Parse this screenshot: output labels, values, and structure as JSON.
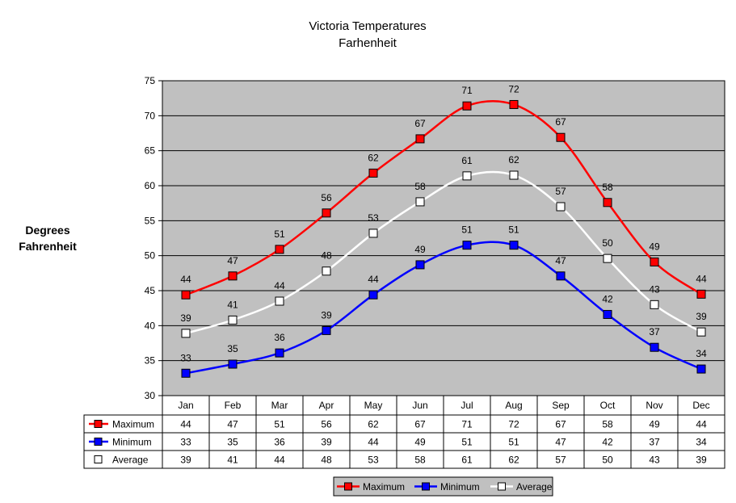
{
  "chart_data": {
    "type": "line",
    "title": "Victoria Temperatures",
    "subtitle": "Farhenheit",
    "ylabel_line1": "Degrees",
    "ylabel_line2": "Fahrenheit",
    "xlabel": "",
    "ylim": [
      30,
      75
    ],
    "ytick_step": 5,
    "yticks": [
      "30",
      "35",
      "40",
      "45",
      "50",
      "55",
      "60",
      "65",
      "70",
      "75"
    ],
    "grid": true,
    "plot_background": "#c0c0c0",
    "categories": [
      "Jan",
      "Feb",
      "Mar",
      "Apr",
      "May",
      "Jun",
      "Jul",
      "Aug",
      "Sep",
      "Oct",
      "Nov",
      "Dec"
    ],
    "series": [
      {
        "name": "Maximum",
        "color": "#ff0000",
        "marker_fill": "#ff0000",
        "values": [
          44.4,
          47.1,
          50.9,
          56.1,
          61.8,
          66.7,
          71.4,
          71.6,
          66.9,
          57.6,
          49.1,
          44.5
        ],
        "labels": [
          "44",
          "47",
          "51",
          "56",
          "62",
          "67",
          "71",
          "72",
          "67",
          "58",
          "49",
          "44"
        ]
      },
      {
        "name": "Minimum",
        "color": "#0000ff",
        "marker_fill": "#0000ff",
        "values": [
          33.2,
          34.5,
          36.1,
          39.3,
          44.4,
          48.7,
          51.5,
          51.5,
          47.1,
          41.6,
          36.9,
          33.8
        ],
        "labels": [
          "33",
          "35",
          "36",
          "39",
          "44",
          "49",
          "51",
          "51",
          "47",
          "42",
          "37",
          "34"
        ]
      },
      {
        "name": "Average",
        "color": "#ffffff",
        "marker_fill": "#ffffff",
        "values": [
          38.9,
          40.8,
          43.5,
          47.8,
          53.2,
          57.7,
          61.4,
          61.5,
          57.0,
          49.6,
          43.0,
          39.1
        ],
        "labels": [
          "39",
          "41",
          "44",
          "48",
          "53",
          "58",
          "61",
          "62",
          "57",
          "50",
          "43",
          "39"
        ]
      }
    ],
    "table": {
      "rows": [
        {
          "name": "Maximum",
          "cells": [
            "44",
            "47",
            "51",
            "56",
            "62",
            "67",
            "71",
            "72",
            "67",
            "58",
            "49",
            "44"
          ]
        },
        {
          "name": "Minimum",
          "cells": [
            "33",
            "35",
            "36",
            "39",
            "44",
            "49",
            "51",
            "51",
            "47",
            "42",
            "37",
            "34"
          ]
        },
        {
          "name": "Average",
          "cells": [
            "39",
            "41",
            "44",
            "48",
            "53",
            "58",
            "61",
            "62",
            "57",
            "50",
            "43",
            "39"
          ]
        }
      ]
    },
    "legend": {
      "placement": "bottom-center",
      "entries": [
        "Maximum",
        "Minimum",
        "Average"
      ]
    }
  }
}
